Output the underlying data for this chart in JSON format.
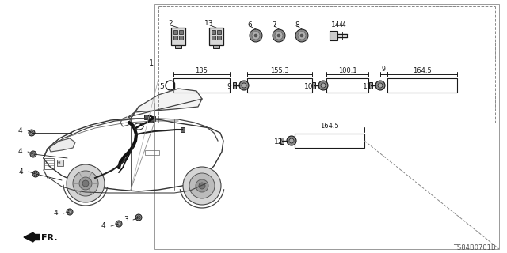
{
  "bg_color": "#ffffff",
  "line_color": "#1a1a1a",
  "part_number": "TS84B0701B",
  "gray_dark": "#444444",
  "gray_mid": "#777777",
  "gray_light": "#aaaaaa",
  "gray_box": "#cccccc"
}
